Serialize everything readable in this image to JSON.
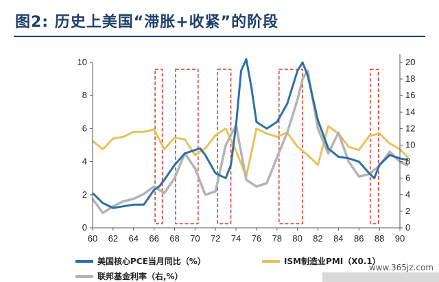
{
  "title": "图2:  历史上美国“滞胀+收紧”的阶段",
  "watermark": "www.365jz.com",
  "colors": {
    "pce": "#2e6ea6",
    "ism": "#e8c15a",
    "fed": "#b3b3b3",
    "box": "#d9342b"
  },
  "chart_data": {
    "type": "line",
    "x_ticks": [
      "60",
      "62",
      "64",
      "66",
      "68",
      "70",
      "72",
      "74",
      "76",
      "78",
      "80",
      "82",
      "84",
      "86",
      "88",
      "90"
    ],
    "y_left": {
      "range": [
        0,
        10
      ],
      "ticks": [
        "0",
        "2",
        "4",
        "6",
        "8",
        "10"
      ]
    },
    "y_right": {
      "range": [
        0,
        20
      ],
      "ticks": [
        "0",
        "2",
        "4",
        "6",
        "8",
        "10",
        "12",
        "14",
        "16",
        "18",
        "20"
      ]
    },
    "highlight_periods": [
      [
        66.1,
        66.8
      ],
      [
        68.1,
        70.3
      ],
      [
        72.2,
        73.5
      ],
      [
        78.2,
        80.5
      ],
      [
        87.1,
        87.9
      ]
    ],
    "series": [
      {
        "name": "美国核心PCE当月同比（%）",
        "axis": "left",
        "x": [
          60,
          61,
          62,
          63,
          64,
          65,
          66,
          66.5,
          67,
          68,
          69,
          70,
          70.5,
          71,
          72,
          73,
          73.5,
          74,
          74.5,
          75,
          75.5,
          76,
          77,
          78,
          79,
          80,
          80.5,
          81,
          82,
          83,
          84,
          85,
          86,
          87,
          87.5,
          88,
          89,
          90,
          90.8
        ],
        "y": [
          2.1,
          1.5,
          1.2,
          1.3,
          1.4,
          1.4,
          2.3,
          2.5,
          2.9,
          3.8,
          4.5,
          4.7,
          4.8,
          4.4,
          3.3,
          3.0,
          3.8,
          6.2,
          9.5,
          10.2,
          8.5,
          6.4,
          6.0,
          6.4,
          7.5,
          9.5,
          10.0,
          9.2,
          6.5,
          4.8,
          4.3,
          4.2,
          4.0,
          3.3,
          3.0,
          3.8,
          4.4,
          4.2,
          4.1
        ]
      },
      {
        "name": "ISM制造业PMI（X0.1）",
        "axis": "right",
        "x": [
          60,
          61,
          62,
          63,
          64,
          65,
          66,
          67,
          68,
          69,
          70,
          71,
          72,
          73,
          74,
          75,
          76,
          77,
          78,
          79,
          80,
          81,
          82,
          83,
          84,
          85,
          86,
          87,
          88,
          89,
          90,
          90.8
        ],
        "y": [
          10.5,
          9.5,
          10.8,
          11.0,
          11.6,
          11.6,
          11.9,
          9.5,
          10.9,
          10.7,
          8.8,
          9.6,
          11.2,
          12.0,
          9.3,
          6.2,
          12.0,
          11.4,
          11.0,
          11.5,
          9.8,
          8.8,
          7.6,
          12.3,
          11.4,
          9.8,
          9.4,
          11.1,
          11.4,
          10.2,
          9.5,
          8.5
        ]
      },
      {
        "name": "联邦基金利率（右,%）",
        "axis": "right",
        "x": [
          60,
          61,
          62,
          63,
          64,
          65,
          66,
          67,
          68,
          69,
          70,
          71,
          72,
          73,
          74,
          75,
          76,
          77,
          78,
          79,
          80,
          80.5,
          81,
          82,
          83,
          84,
          85,
          86,
          87,
          88,
          89,
          90,
          90.8
        ],
        "y": [
          3.5,
          1.8,
          2.6,
          3.2,
          3.5,
          4.1,
          5.0,
          4.2,
          6.0,
          9.0,
          7.2,
          4.0,
          4.4,
          10.0,
          12.4,
          5.8,
          5.0,
          5.4,
          8.5,
          11.5,
          15.5,
          18.0,
          19.0,
          12.0,
          9.0,
          11.5,
          8.0,
          6.2,
          6.5,
          7.5,
          9.2,
          8.0,
          7.5
        ]
      }
    ]
  }
}
